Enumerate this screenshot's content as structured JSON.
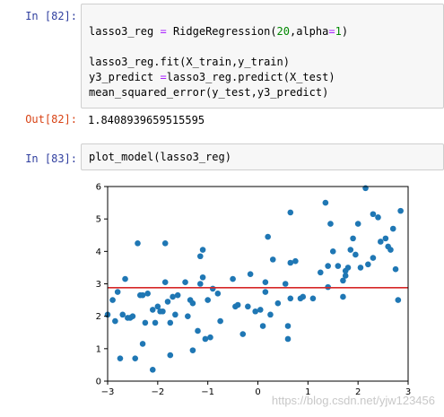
{
  "cells": {
    "c82_prompt": "In  [82]:",
    "c82_lines": [
      {
        "pre": "lasso3_reg ",
        "op": "=",
        "mid": " RidgeRegression(",
        "num": "20",
        "mid2": ",alpha",
        "op2": "=",
        "num2": "1",
        "post": ")"
      },
      {
        "text": "lasso3_reg.fit(X_train,y_train)"
      },
      {
        "pre": "y3_predict ",
        "op": "=",
        "post": "lasso3_reg.predict(X_test)"
      },
      {
        "text": "mean_squared_error(y_test,y3_predict)"
      }
    ],
    "out82_prompt": "Out[82]:",
    "out82_value": "1.8408939659515595",
    "c83_prompt": "In  [83]:",
    "c83_code": "plot_model(lasso3_reg)"
  },
  "watermark": "https://blog.csdn.net/yjw123456",
  "chart_data": {
    "type": "scatter",
    "xlim": [
      -3,
      3
    ],
    "ylim": [
      0,
      6
    ],
    "xticks": [
      "−3",
      "−2",
      "−1",
      "0",
      "1",
      "2",
      "3"
    ],
    "yticks": [
      "0",
      "1",
      "2",
      "3",
      "4",
      "5",
      "6"
    ],
    "point_color": "#1f77b4",
    "line_color": "#d62728",
    "fit_line": {
      "x": [
        -3,
        3
      ],
      "y": [
        2.88,
        2.88
      ]
    },
    "points": [
      [
        -3.0,
        2.05
      ],
      [
        -2.9,
        2.5
      ],
      [
        -2.85,
        1.85
      ],
      [
        -2.8,
        2.75
      ],
      [
        -2.75,
        0.7
      ],
      [
        -2.7,
        2.05
      ],
      [
        -2.65,
        3.15
      ],
      [
        -2.6,
        1.95
      ],
      [
        -2.55,
        1.95
      ],
      [
        -2.5,
        2.0
      ],
      [
        -2.45,
        0.7
      ],
      [
        -2.4,
        4.25
      ],
      [
        -2.35,
        2.65
      ],
      [
        -2.3,
        2.65
      ],
      [
        -2.3,
        1.15
      ],
      [
        -2.25,
        1.8
      ],
      [
        -2.2,
        2.7
      ],
      [
        -2.1,
        0.35
      ],
      [
        -2.1,
        2.2
      ],
      [
        -2.05,
        1.8
      ],
      [
        -2.0,
        2.3
      ],
      [
        -1.95,
        2.15
      ],
      [
        -1.9,
        2.15
      ],
      [
        -1.85,
        4.25
      ],
      [
        -1.85,
        3.05
      ],
      [
        -1.8,
        2.45
      ],
      [
        -1.75,
        0.8
      ],
      [
        -1.75,
        1.8
      ],
      [
        -1.7,
        2.6
      ],
      [
        -1.65,
        2.05
      ],
      [
        -1.6,
        2.65
      ],
      [
        -1.45,
        3.05
      ],
      [
        -1.4,
        2.0
      ],
      [
        -1.35,
        2.5
      ],
      [
        -1.3,
        2.4
      ],
      [
        -1.3,
        0.95
      ],
      [
        -1.2,
        1.55
      ],
      [
        -1.15,
        3.85
      ],
      [
        -1.15,
        3.0
      ],
      [
        -1.1,
        3.2
      ],
      [
        -1.1,
        4.05
      ],
      [
        -1.05,
        1.3
      ],
      [
        -1.0,
        2.5
      ],
      [
        -0.95,
        1.35
      ],
      [
        -0.9,
        2.85
      ],
      [
        -0.8,
        2.7
      ],
      [
        -0.75,
        1.85
      ],
      [
        -0.5,
        3.15
      ],
      [
        -0.45,
        2.3
      ],
      [
        -0.4,
        2.35
      ],
      [
        -0.3,
        1.45
      ],
      [
        -0.2,
        2.3
      ],
      [
        -0.15,
        3.3
      ],
      [
        -0.05,
        2.15
      ],
      [
        0.05,
        2.2
      ],
      [
        0.1,
        1.7
      ],
      [
        0.15,
        2.75
      ],
      [
        0.15,
        3.05
      ],
      [
        0.2,
        4.45
      ],
      [
        0.25,
        2.05
      ],
      [
        0.3,
        3.75
      ],
      [
        0.4,
        2.4
      ],
      [
        0.55,
        3.0
      ],
      [
        0.6,
        1.3
      ],
      [
        0.6,
        1.7
      ],
      [
        0.65,
        2.55
      ],
      [
        0.65,
        5.2
      ],
      [
        0.65,
        3.65
      ],
      [
        0.75,
        3.7
      ],
      [
        0.85,
        2.55
      ],
      [
        0.9,
        2.6
      ],
      [
        1.1,
        2.55
      ],
      [
        1.25,
        3.35
      ],
      [
        1.35,
        5.5
      ],
      [
        1.4,
        3.55
      ],
      [
        1.4,
        2.9
      ],
      [
        1.45,
        4.85
      ],
      [
        1.5,
        4.0
      ],
      [
        1.6,
        3.55
      ],
      [
        1.7,
        2.6
      ],
      [
        1.7,
        3.1
      ],
      [
        1.75,
        3.25
      ],
      [
        1.75,
        3.4
      ],
      [
        1.8,
        3.5
      ],
      [
        1.85,
        4.05
      ],
      [
        1.9,
        4.4
      ],
      [
        1.95,
        3.9
      ],
      [
        2.0,
        4.85
      ],
      [
        2.05,
        3.5
      ],
      [
        2.15,
        5.95
      ],
      [
        2.2,
        3.6
      ],
      [
        2.3,
        5.15
      ],
      [
        2.3,
        3.8
      ],
      [
        2.4,
        5.05
      ],
      [
        2.45,
        4.3
      ],
      [
        2.55,
        4.4
      ],
      [
        2.6,
        4.15
      ],
      [
        2.65,
        4.05
      ],
      [
        2.7,
        4.7
      ],
      [
        2.75,
        3.45
      ],
      [
        2.8,
        2.5
      ],
      [
        2.85,
        5.25
      ]
    ]
  }
}
